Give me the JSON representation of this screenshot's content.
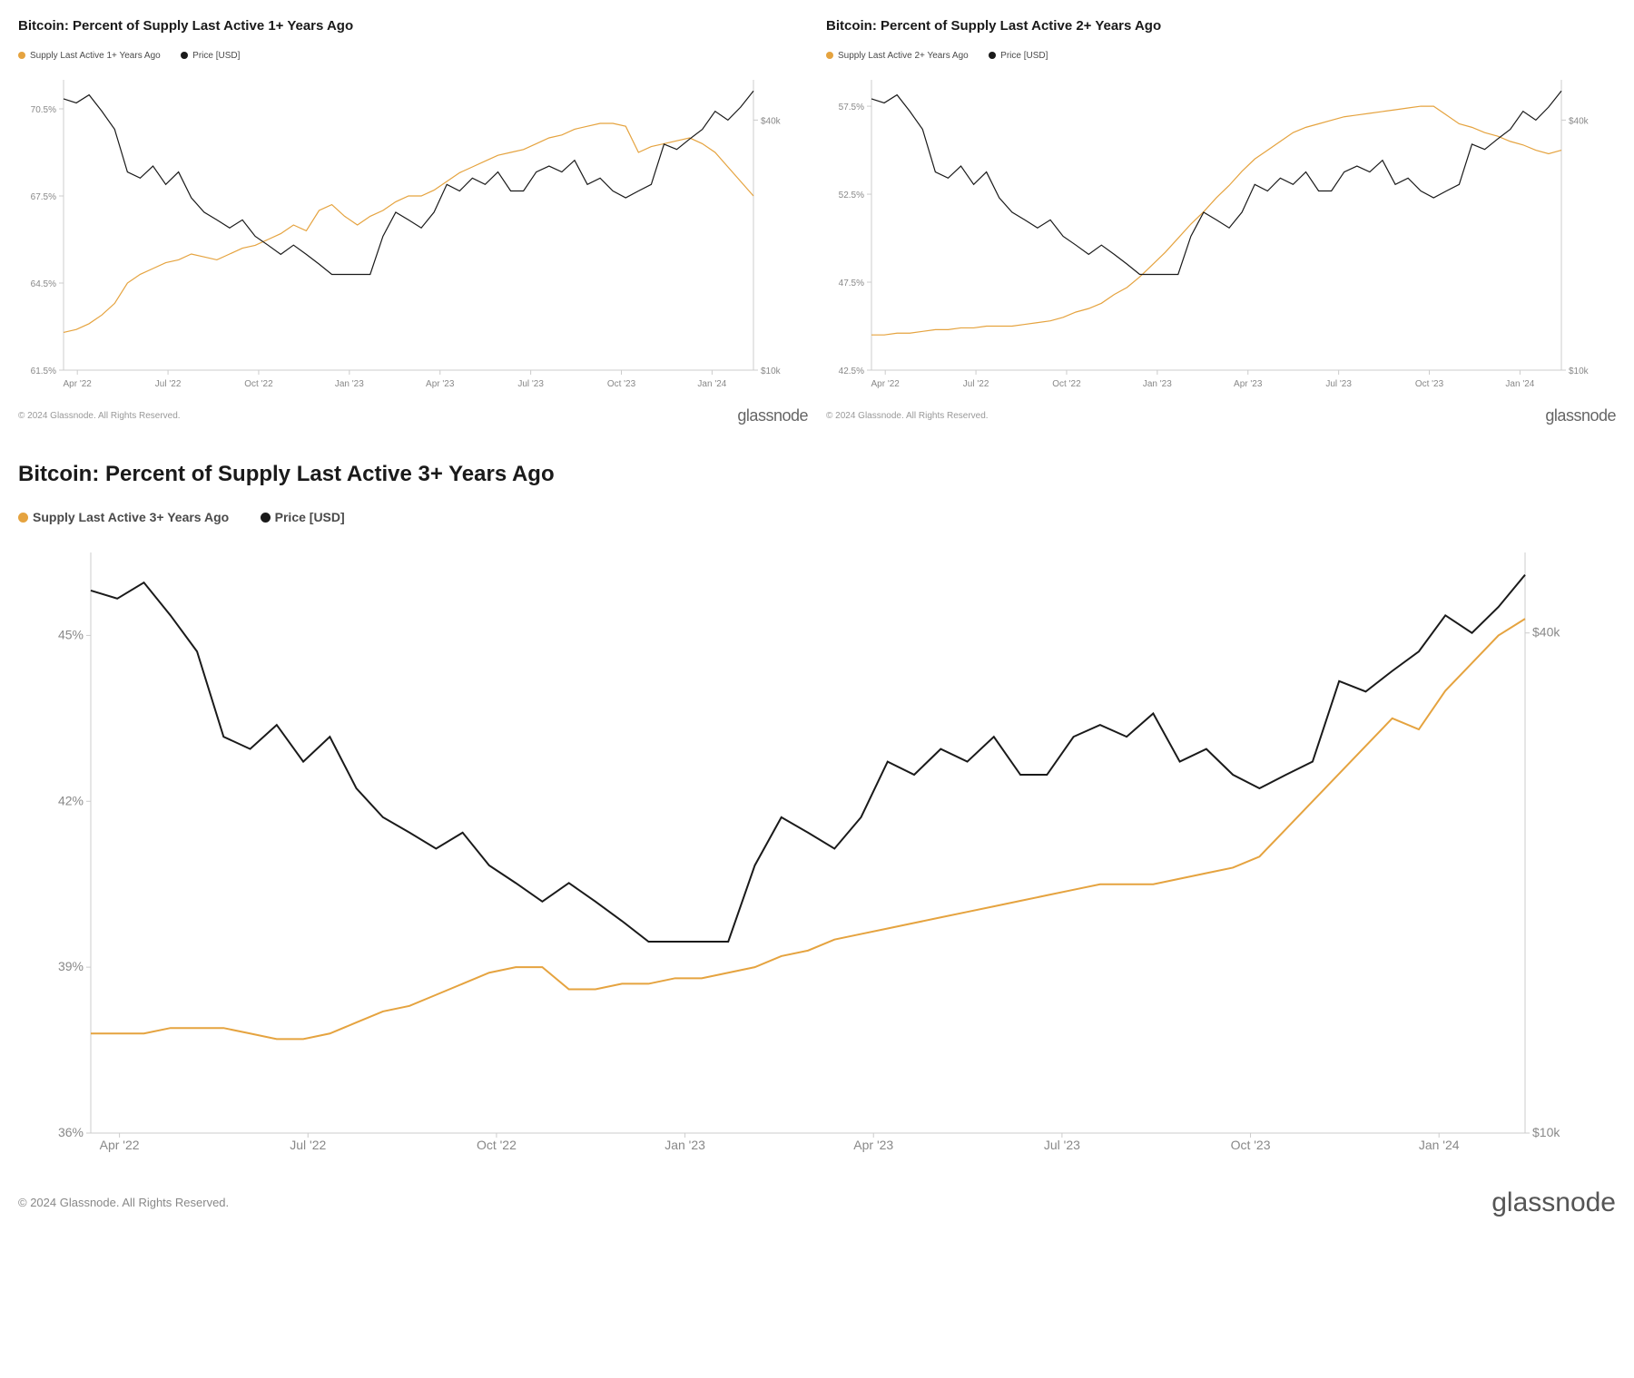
{
  "copyright": "© 2024 Glassnode. All Rights Reserved.",
  "brand": "glassnode",
  "colors": {
    "supply_line": "#e5a33f",
    "price_line": "#1a1a1a",
    "axis": "#cccccc",
    "text": "#888888",
    "background": "#ffffff"
  },
  "chart1": {
    "title": "Bitcoin: Percent of Supply Last Active 1+ Years Ago",
    "legend_supply": "Supply Last Active 1+ Years Ago",
    "legend_price": "Price [USD]",
    "x_labels": [
      "Apr '22",
      "Jul '22",
      "Oct '22",
      "Jan '23",
      "Apr '23",
      "Jul '23",
      "Oct '23",
      "Jan '24"
    ],
    "y_left": [
      "61.5%",
      "64.5%",
      "67.5%",
      "70.5%"
    ],
    "y_right": [
      "$10k",
      "$40k"
    ],
    "y_left_domain": [
      61.5,
      71.5
    ],
    "y_right_domain": [
      10,
      50
    ],
    "supply_data": [
      62.8,
      62.9,
      63.1,
      63.4,
      63.8,
      64.5,
      64.8,
      65.0,
      65.2,
      65.3,
      65.5,
      65.4,
      65.3,
      65.5,
      65.7,
      65.8,
      66.0,
      66.2,
      66.5,
      66.3,
      67.0,
      67.2,
      66.8,
      66.5,
      66.8,
      67.0,
      67.3,
      67.5,
      67.5,
      67.7,
      68.0,
      68.3,
      68.5,
      68.7,
      68.9,
      69.0,
      69.1,
      69.3,
      69.5,
      69.6,
      69.8,
      69.9,
      70.0,
      70.0,
      69.9,
      69.0,
      69.2,
      69.3,
      69.4,
      69.5,
      69.3,
      69.0,
      68.5,
      68.0,
      67.5
    ],
    "price_data": [
      45,
      44,
      46,
      42,
      38,
      30,
      29,
      31,
      28,
      30,
      26,
      24,
      23,
      22,
      23,
      21,
      20,
      19,
      20,
      19,
      18,
      17,
      17,
      17,
      17,
      21,
      24,
      23,
      22,
      24,
      28,
      27,
      29,
      28,
      30,
      27,
      27,
      30,
      31,
      30,
      32,
      28,
      29,
      27,
      26,
      27,
      28,
      35,
      34,
      36,
      38,
      42,
      40,
      43,
      47
    ]
  },
  "chart2": {
    "title": "Bitcoin: Percent of Supply Last Active 2+ Years Ago",
    "legend_supply": "Supply Last Active 2+ Years Ago",
    "legend_price": "Price [USD]",
    "x_labels": [
      "Apr '22",
      "Jul '22",
      "Oct '22",
      "Jan '23",
      "Apr '23",
      "Jul '23",
      "Oct '23",
      "Jan '24"
    ],
    "y_left": [
      "42.5%",
      "47.5%",
      "52.5%",
      "57.5%"
    ],
    "y_right": [
      "$10k",
      "$40k"
    ],
    "y_left_domain": [
      42.5,
      59.0
    ],
    "y_right_domain": [
      10,
      50
    ],
    "supply_data": [
      44.5,
      44.5,
      44.6,
      44.6,
      44.7,
      44.8,
      44.8,
      44.9,
      44.9,
      45.0,
      45.0,
      45.0,
      45.1,
      45.2,
      45.3,
      45.5,
      45.8,
      46.0,
      46.3,
      46.8,
      47.2,
      47.8,
      48.5,
      49.2,
      50.0,
      50.8,
      51.5,
      52.3,
      53.0,
      53.8,
      54.5,
      55.0,
      55.5,
      56.0,
      56.3,
      56.5,
      56.7,
      56.9,
      57.0,
      57.1,
      57.2,
      57.3,
      57.4,
      57.5,
      57.5,
      57.0,
      56.5,
      56.3,
      56.0,
      55.8,
      55.5,
      55.3,
      55.0,
      54.8,
      55.0
    ],
    "price_data": [
      45,
      44,
      46,
      42,
      38,
      30,
      29,
      31,
      28,
      30,
      26,
      24,
      23,
      22,
      23,
      21,
      20,
      19,
      20,
      19,
      18,
      17,
      17,
      17,
      17,
      21,
      24,
      23,
      22,
      24,
      28,
      27,
      29,
      28,
      30,
      27,
      27,
      30,
      31,
      30,
      32,
      28,
      29,
      27,
      26,
      27,
      28,
      35,
      34,
      36,
      38,
      42,
      40,
      43,
      47
    ]
  },
  "chart3": {
    "title": "Bitcoin: Percent of Supply Last Active 3+ Years Ago",
    "legend_supply": "Supply Last Active 3+ Years Ago",
    "legend_price": "Price [USD]",
    "x_labels": [
      "Apr '22",
      "Jul '22",
      "Oct '22",
      "Jan '23",
      "Apr '23",
      "Jul '23",
      "Oct '23",
      "Jan '24"
    ],
    "y_left": [
      "36%",
      "39%",
      "42%",
      "45%"
    ],
    "y_right": [
      "$10k",
      "$40k"
    ],
    "y_left_domain": [
      36,
      46.5
    ],
    "y_right_domain": [
      10,
      50
    ],
    "supply_data": [
      37.8,
      37.8,
      37.8,
      37.9,
      37.9,
      37.9,
      37.8,
      37.7,
      37.7,
      37.8,
      38.0,
      38.2,
      38.3,
      38.5,
      38.7,
      38.9,
      39.0,
      39.0,
      38.6,
      38.6,
      38.7,
      38.7,
      38.8,
      38.8,
      38.9,
      39.0,
      39.2,
      39.3,
      39.5,
      39.6,
      39.7,
      39.8,
      39.9,
      40.0,
      40.1,
      40.2,
      40.3,
      40.4,
      40.5,
      40.5,
      40.5,
      40.6,
      40.7,
      40.8,
      41.0,
      41.5,
      42.0,
      42.5,
      43.0,
      43.5,
      43.3,
      44.0,
      44.5,
      45.0,
      45.3
    ],
    "price_data": [
      45,
      44,
      46,
      42,
      38,
      30,
      29,
      31,
      28,
      30,
      26,
      24,
      23,
      22,
      23,
      21,
      20,
      19,
      20,
      19,
      18,
      17,
      17,
      17,
      17,
      21,
      24,
      23,
      22,
      24,
      28,
      27,
      29,
      28,
      30,
      27,
      27,
      30,
      31,
      30,
      32,
      28,
      29,
      27,
      26,
      27,
      28,
      35,
      34,
      36,
      38,
      42,
      40,
      43,
      47
    ]
  }
}
